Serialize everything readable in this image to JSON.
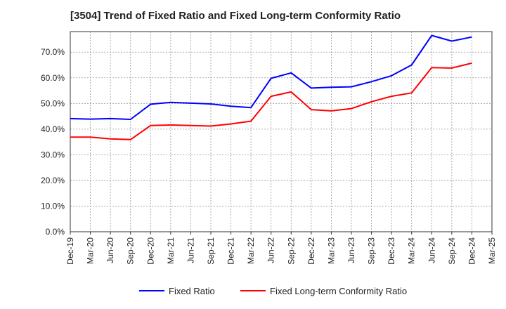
{
  "chart_data": {
    "type": "line",
    "title": "[3504]  Trend of Fixed Ratio and Fixed Long-term Conformity Ratio",
    "xlabel": "",
    "ylabel": "",
    "x": [
      "Dec-19",
      "Mar-20",
      "Jun-20",
      "Sep-20",
      "Dec-20",
      "Mar-21",
      "Jun-21",
      "Sep-21",
      "Dec-21",
      "Mar-22",
      "Jun-22",
      "Sep-22",
      "Dec-22",
      "Mar-23",
      "Jun-23",
      "Sep-23",
      "Dec-23",
      "Mar-24",
      "Jun-24",
      "Sep-24",
      "Dec-24",
      "Mar-25"
    ],
    "ylim": [
      0,
      78
    ],
    "yticks": [
      "0.0%",
      "10.0%",
      "20.0%",
      "30.0%",
      "40.0%",
      "50.0%",
      "60.0%",
      "70.0%"
    ],
    "ytick_values": [
      0,
      10,
      20,
      30,
      40,
      50,
      60,
      70
    ],
    "grid": true,
    "legend_position": "bottom",
    "series": [
      {
        "name": "Fixed Ratio",
        "color": "#0000ff",
        "values": [
          44.1,
          43.9,
          44.1,
          43.8,
          49.7,
          50.4,
          50.1,
          49.8,
          48.9,
          48.4,
          59.8,
          61.9,
          56.0,
          56.3,
          56.5,
          58.5,
          60.8,
          65.0,
          76.5,
          74.3,
          75.9,
          null
        ]
      },
      {
        "name": "Fixed Long-term Conformity Ratio",
        "color": "#ff0000",
        "values": [
          36.9,
          36.9,
          36.2,
          35.9,
          41.4,
          41.6,
          41.4,
          41.2,
          42.0,
          43.1,
          52.8,
          54.5,
          47.6,
          47.1,
          48.0,
          50.7,
          52.8,
          54.1,
          64.0,
          63.8,
          65.7,
          null
        ]
      }
    ]
  }
}
